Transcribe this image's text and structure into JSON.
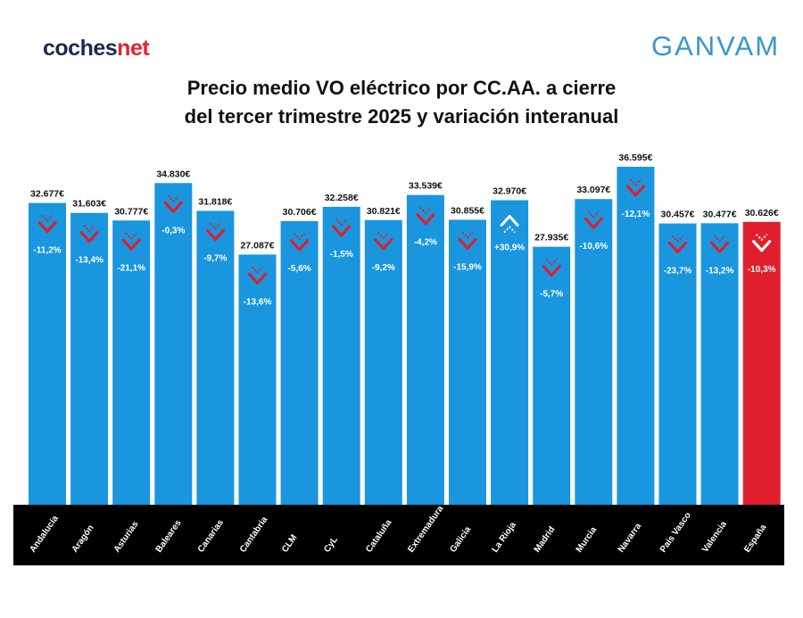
{
  "header": {
    "logo_left_main": "coches",
    "logo_left_accent": "net",
    "logo_right": "GANVAM",
    "title_line1": "Precio medio VO eléctrico por CC.AA. a cierre",
    "title_line2": "del tercer trimestre 2025 y variación interanual"
  },
  "colors": {
    "bar": "#1996de",
    "highlight_bar": "#e01f2d",
    "down_arrow": "#e01f2d",
    "up_arrow": "#ffffff",
    "axis_band": "#000000"
  },
  "icons": {
    "down": "down-chevron-icon",
    "up": "up-chevron-icon"
  },
  "chart_data": {
    "type": "bar",
    "categories": [
      "Andalucía",
      "Aragón",
      "Asturias",
      "Baleares",
      "Canarias",
      "Cantabria",
      "CLM",
      "CyL",
      "Cataluña",
      "Extremadura",
      "Galicia",
      "La Rioja",
      "Madrid",
      "Murcia",
      "Navarra",
      "País Vasco",
      "Valencia",
      "España"
    ],
    "values": [
      32677,
      31603,
      30777,
      34830,
      31818,
      27087,
      30706,
      32258,
      30821,
      33539,
      30855,
      32970,
      27935,
      33097,
      36595,
      30457,
      30477,
      30626
    ],
    "value_labels": [
      "32.677€",
      "31.603€",
      "30.777€",
      "34.830€",
      "31.818€",
      "27.087€",
      "30.706€",
      "32.258€",
      "30.821€",
      "33.539€",
      "30.855€",
      "32.970€",
      "27.935€",
      "33.097€",
      "36.595€",
      "30.457€",
      "30.477€",
      "30.626€"
    ],
    "yoy_change_pct": [
      -11.2,
      -13.4,
      -21.1,
      -0.3,
      -9.7,
      -13.6,
      -5.6,
      -1.5,
      -9.2,
      -4.2,
      -15.9,
      30.9,
      -5.7,
      -10.6,
      -12.1,
      -23.7,
      -13.2,
      -10.3
    ],
    "yoy_labels": [
      "-11,2%",
      "-13,4%",
      "-21,1%",
      "-0,3%",
      "-9,7%",
      "-13,6%",
      "-5,6%",
      "-1,5%",
      "-9,2%",
      "-4,2%",
      "-15,9%",
      "+30,9%",
      "-5,7%",
      "-10,6%",
      "-12,1%",
      "-23,7%",
      "-13,2%",
      "-10,3%"
    ],
    "highlight": "España",
    "ylim": [
      0,
      36595
    ],
    "grid": false,
    "legend": "none"
  }
}
